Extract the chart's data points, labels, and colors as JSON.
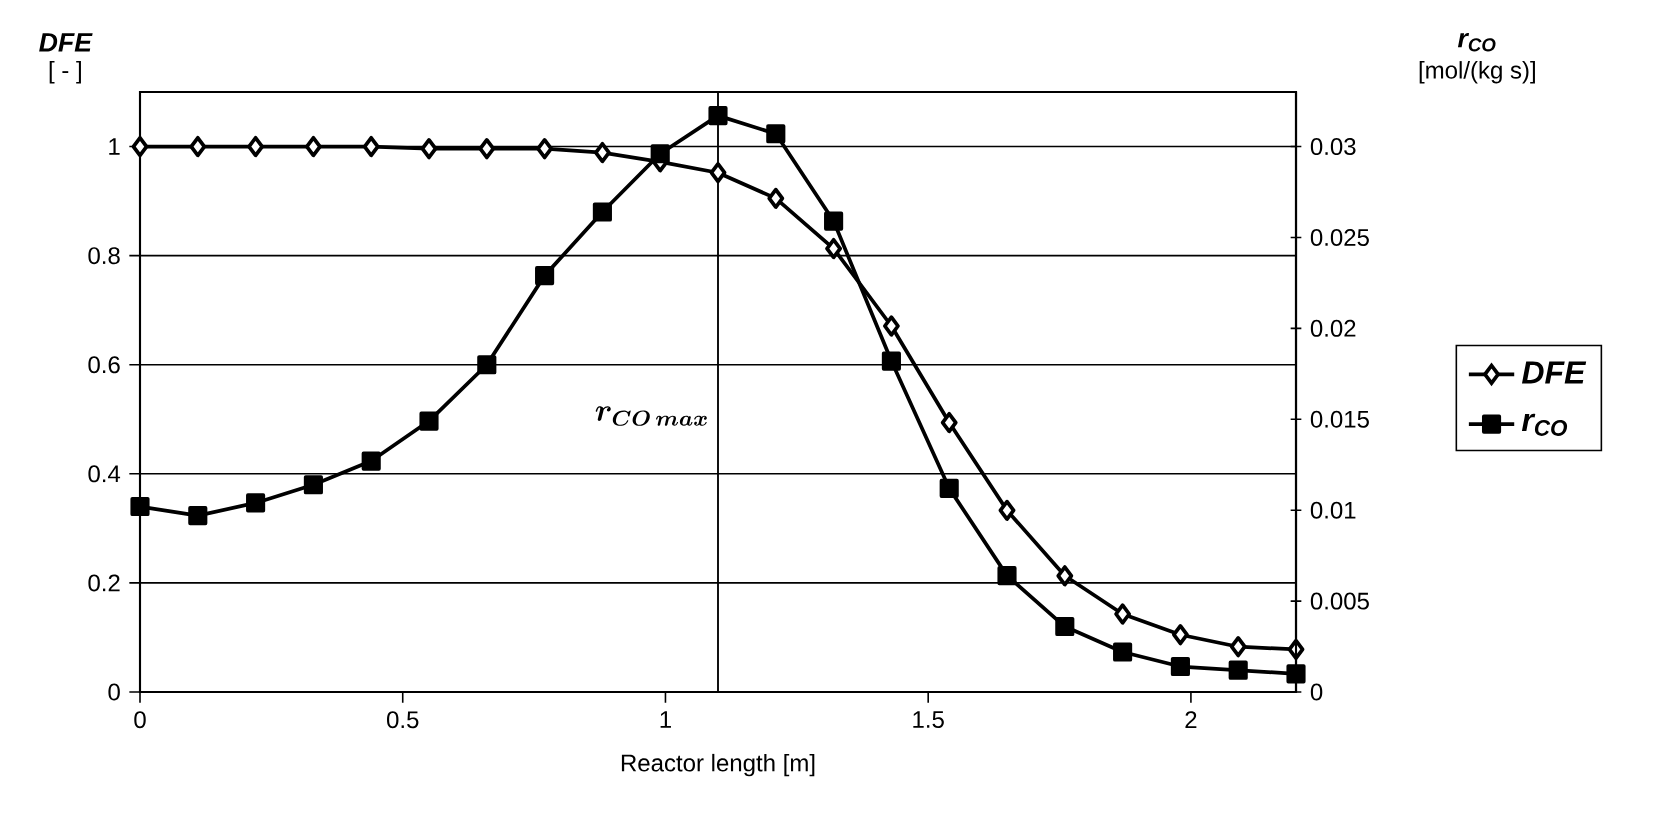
{
  "chart_data": {
    "type": "line",
    "xlabel": "Reactor length [m]",
    "ylabel": "DFE",
    "y2label": "r$_{CO}$",
    "annotations": [
      "[ - ]",
      "[mol/(kg s)]"
    ],
    "x": [
      0,
      0.11,
      0.22,
      0.33,
      0.44,
      0.55,
      0.66,
      0.77,
      0.88,
      0.99,
      1.1,
      1.21,
      1.32,
      1.43,
      1.54,
      1.65,
      1.76,
      1.87,
      1.98,
      2.09,
      2.2
    ],
    "series": [
      {
        "name": "DFE",
        "color": "#000000",
        "marker": "diamond",
        "values": [
          1.0,
          1.0,
          1.0,
          1.0,
          1.0,
          0.996,
          0.996,
          0.996,
          0.989,
          0.972,
          0.952,
          0.905,
          0.813,
          0.671,
          0.494,
          0.333,
          0.213,
          0.143,
          0.105,
          0.083,
          0.078
        ]
      },
      {
        "name": "r$_{CO}$",
        "color": "#000000",
        "marker": "square",
        "axis": "y2",
        "values": [
          0.0102,
          0.0097,
          0.0104,
          0.0114,
          0.0127,
          0.0149,
          0.018,
          0.0229,
          0.0264,
          0.0296,
          0.0317,
          0.0307,
          0.0259,
          0.0182,
          0.0112,
          0.0064,
          0.0036,
          0.0022,
          0.0014,
          0.0012,
          0.001
        ]
      }
    ],
    "xlim": [
      0,
      2.2
    ],
    "xticks": [
      0,
      0.5,
      1,
      1.5,
      2
    ],
    "ylim": [
      0,
      1.1
    ],
    "yticks": [
      0,
      0.2,
      0.4,
      0.6,
      0.8,
      1
    ],
    "y2lim": [
      0,
      0.033
    ],
    "y2ticks": [
      0,
      0.005,
      0.01,
      0.015,
      0.02,
      0.025,
      0.03
    ],
    "ref_lines": [
      {
        "axis": "x",
        "value": 1.1,
        "label": "r_{CO\\,max}"
      }
    ],
    "grid": "y",
    "legend": "right",
    "line_style": "solid"
  }
}
